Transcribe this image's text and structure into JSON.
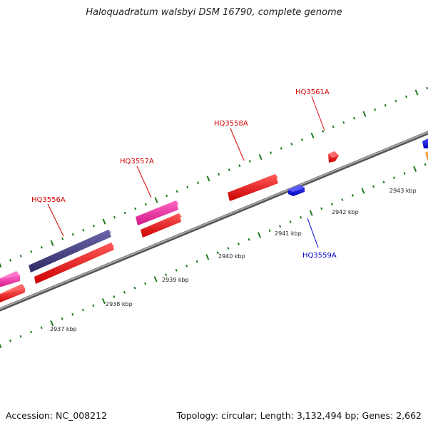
{
  "title": "Haloquadratum walsbyi DSM 16790, complete genome",
  "footer": {
    "accession": "Accession: NC_008212",
    "summary": "Topology: circular; Length: 3,132,494 bp; Genes: 2,662"
  },
  "scale": {
    "unit": "kbp",
    "labels": [
      {
        "kbp": 2937,
        "text": "2937 kbp"
      },
      {
        "kbp": 2938,
        "text": "2938 kbp"
      },
      {
        "kbp": 2939,
        "text": "2939 kbp"
      },
      {
        "kbp": 2940,
        "text": "2940 kbp"
      },
      {
        "kbp": 2941,
        "text": "2941 kbp"
      },
      {
        "kbp": 2942,
        "text": "2942 kbp"
      },
      {
        "kbp": 2943,
        "text": "2943 kbp"
      }
    ]
  },
  "gene_labels": [
    {
      "text": "HQ3556A",
      "color": "#d40000"
    },
    {
      "text": "HQ3557A",
      "color": "#d40000"
    },
    {
      "text": "HQ3558A",
      "color": "#d40000"
    },
    {
      "text": "HQ3561A",
      "color": "#d40000"
    },
    {
      "text": "HQ3559A",
      "color": "#0000cc"
    }
  ],
  "colors": {
    "backbone": "#7a7a7a",
    "tick": "#1f7a1f",
    "cds": "#ee1111",
    "rna": "#ee2a9a",
    "gene_dark": "#44407e",
    "reverse_cds": "#1a1aee",
    "other": "#f08a1a"
  }
}
